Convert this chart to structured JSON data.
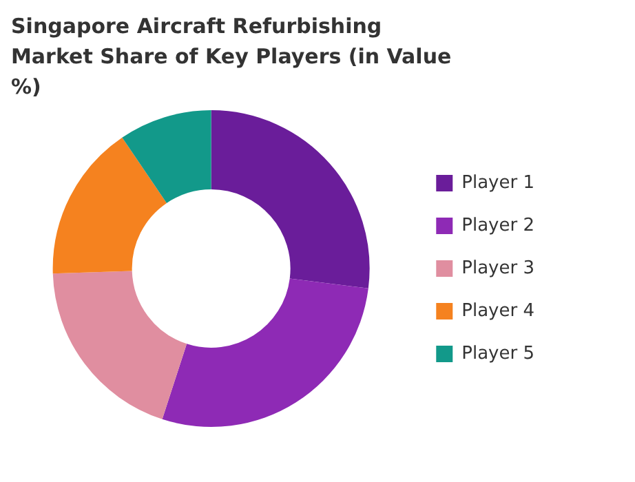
{
  "chart_data": {
    "type": "donut",
    "title": "Singapore Aircraft Refurbishing Market Share of Key Players (in Value %)",
    "categories": [
      "Player 1",
      "Player 2",
      "Player 3",
      "Player 4",
      "Player 5"
    ],
    "values": [
      27,
      28,
      19.5,
      16,
      9.5
    ],
    "colors": [
      "#6a1d9a",
      "#8e2ab5",
      "#e08ea0",
      "#f5821f",
      "#12998a"
    ],
    "legend": "right"
  }
}
